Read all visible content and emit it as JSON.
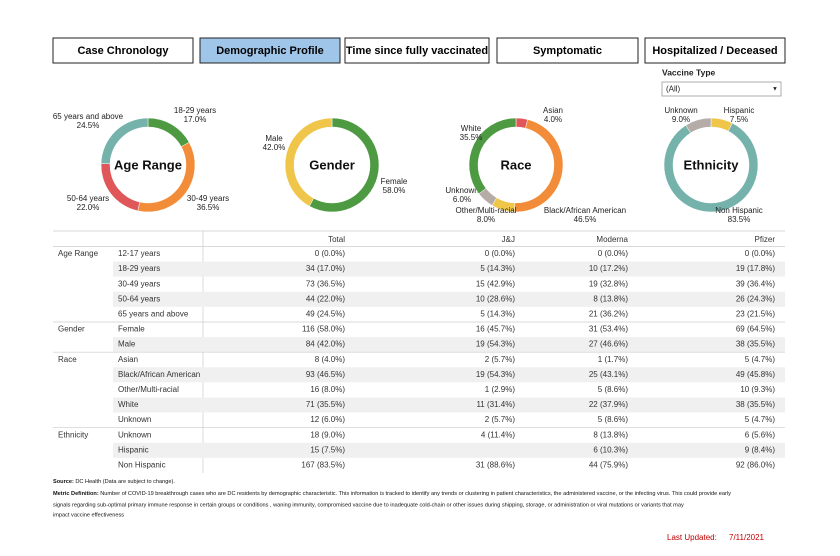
{
  "tabs": {
    "items": [
      "Case Chronology",
      "Demographic Profile",
      "Time since fully vaccinated",
      "Symptomatic",
      "Hospitalized / Deceased"
    ],
    "active": 1
  },
  "filter": {
    "label": "Vaccine Type",
    "value": "(All)"
  },
  "chart_data": [
    {
      "type": "pie",
      "title": "Age Range",
      "categories": [
        "18-29 years",
        "30-49 years",
        "50-64 years",
        "65 years and above"
      ],
      "values": [
        17.0,
        36.5,
        22.0,
        24.5
      ],
      "value_labels": [
        "17.0%",
        "36.5%",
        "22.0%",
        "24.5%"
      ],
      "colors": [
        "#4e9a43",
        "#f28c38",
        "#e0575a",
        "#74b2ab"
      ]
    },
    {
      "type": "pie",
      "title": "Gender",
      "categories": [
        "Female",
        "Male"
      ],
      "values": [
        58.0,
        42.0
      ],
      "value_labels": [
        "58.0%",
        "42.0%"
      ],
      "colors": [
        "#4e9a43",
        "#efc54a"
      ]
    },
    {
      "type": "pie",
      "title": "Race",
      "categories": [
        "Asian",
        "Black/African American",
        "Other/Multi-racial",
        "Unknown",
        "White"
      ],
      "values": [
        4.0,
        46.5,
        8.0,
        6.0,
        35.5
      ],
      "value_labels": [
        "4.0%",
        "46.5%",
        "8.0%",
        "6.0%",
        "35.5%"
      ],
      "colors": [
        "#e0575a",
        "#f28c38",
        "#efc54a",
        "#b5aca8",
        "#4e9a43"
      ]
    },
    {
      "type": "pie",
      "title": "Ethnicity",
      "categories": [
        "Hispanic",
        "Non Hispanic",
        "Unknown"
      ],
      "values": [
        7.5,
        83.5,
        9.0
      ],
      "value_labels": [
        "7.5%",
        "83.5%",
        "9.0%"
      ],
      "colors": [
        "#efc54a",
        "#74b2ab",
        "#b5aca8"
      ]
    }
  ],
  "table": {
    "columns": [
      "Total",
      "J&J",
      "Moderna",
      "Pfizer"
    ],
    "groups": [
      {
        "name": "Age Range",
        "rows": [
          {
            "label": "12-17 years",
            "cells": [
              "0 (0.0%)",
              "0 (0.0%)",
              "0 (0.0%)",
              "0 (0.0%)"
            ]
          },
          {
            "label": "18-29 years",
            "cells": [
              "34 (17.0%)",
              "5 (14.3%)",
              "10 (17.2%)",
              "19 (17.8%)"
            ]
          },
          {
            "label": "30-49 years",
            "cells": [
              "73 (36.5%)",
              "15 (42.9%)",
              "19 (32.8%)",
              "39 (36.4%)"
            ]
          },
          {
            "label": "50-64 years",
            "cells": [
              "44 (22.0%)",
              "10 (28.6%)",
              "8 (13.8%)",
              "26 (24.3%)"
            ]
          },
          {
            "label": "65 years and above",
            "cells": [
              "49 (24.5%)",
              "5 (14.3%)",
              "21 (36.2%)",
              "23 (21.5%)"
            ]
          }
        ]
      },
      {
        "name": "Gender",
        "rows": [
          {
            "label": "Female",
            "cells": [
              "116 (58.0%)",
              "16 (45.7%)",
              "31 (53.4%)",
              "69 (64.5%)"
            ]
          },
          {
            "label": "Male",
            "cells": [
              "84 (42.0%)",
              "19 (54.3%)",
              "27 (46.6%)",
              "38 (35.5%)"
            ]
          }
        ]
      },
      {
        "name": "Race",
        "rows": [
          {
            "label": "Asian",
            "cells": [
              "8 (4.0%)",
              "2 (5.7%)",
              "1 (1.7%)",
              "5 (4.7%)"
            ]
          },
          {
            "label": "Black/African American",
            "cells": [
              "93 (46.5%)",
              "19 (54.3%)",
              "25 (43.1%)",
              "49 (45.8%)"
            ]
          },
          {
            "label": "Other/Multi-racial",
            "cells": [
              "16 (8.0%)",
              "1 (2.9%)",
              "5 (8.6%)",
              "10 (9.3%)"
            ]
          },
          {
            "label": "White",
            "cells": [
              "71 (35.5%)",
              "11 (31.4%)",
              "22 (37.9%)",
              "38 (35.5%)"
            ]
          },
          {
            "label": "Unknown",
            "cells": [
              "12 (6.0%)",
              "2 (5.7%)",
              "5 (8.6%)",
              "5 (4.7%)"
            ]
          }
        ]
      },
      {
        "name": "Ethnicity",
        "rows": [
          {
            "label": "Unknown",
            "cells": [
              "18 (9.0%)",
              "4 (11.4%)",
              "8 (13.8%)",
              "6 (5.6%)"
            ]
          },
          {
            "label": "Hispanic",
            "cells": [
              "15 (7.5%)",
              null,
              "6 (10.3%)",
              "9 (8.4%)"
            ]
          },
          {
            "label": "Non Hispanic",
            "cells": [
              "167 (83.5%)",
              "31 (88.6%)",
              "44 (75.9%)",
              "92 (86.0%)"
            ]
          }
        ]
      }
    ]
  },
  "footer": {
    "source": {
      "label": "Source:",
      "text": "DC Health (Data are subject to change)."
    },
    "definition": {
      "label": "Metric Definition:",
      "lines": [
        "Number of COVID-19 breakthrough cases who are DC residents by demographic characteristic. This information is tracked to identify any trends or clustering in patient characteristics, the administered vaccine, or the infecting virus.  This could provide early",
        "signals regarding sub-optimal primary immune response in certain groups or conditions , waning immunity, compromised vaccine due to inadequate cold-chain or other issues during shipping, storage, or administration or viral mutations or variants that may",
        "impact vaccine effectiveness"
      ]
    },
    "updated": {
      "label": "Last Updated:",
      "value": "7/11/2021"
    }
  }
}
